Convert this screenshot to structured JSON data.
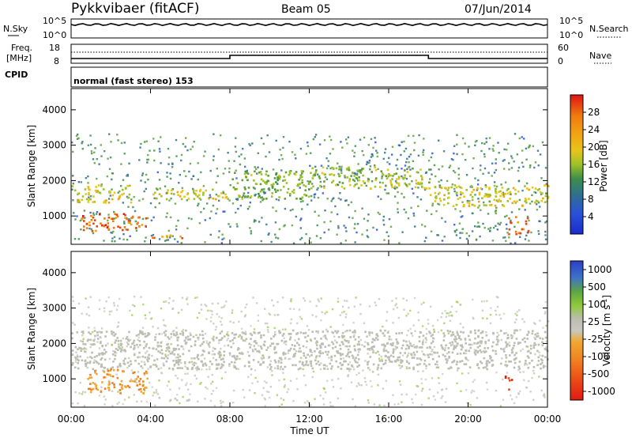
{
  "header": {
    "station": "Pykkvibaer (fitACF)",
    "beam": "Beam 05",
    "date": "07/Jun/2014"
  },
  "nsky_panel": {
    "left_label": "N.Sky",
    "left_ticks": [
      "10^5",
      "10^0"
    ],
    "right_ticks": [
      "10^5",
      "10^0"
    ],
    "right_label": "N.Search"
  },
  "freq_panel": {
    "left_label_top": "Freq.",
    "left_label_bottom": "[MHz]",
    "left_ticks": [
      "18",
      "8"
    ],
    "right_ticks": [
      "60",
      "0"
    ],
    "right_label": "Nave"
  },
  "cpid": {
    "label": "CPID",
    "mode_text": "normal (fast stereo) 153"
  },
  "x_axis": {
    "label": "Time UT",
    "ticks": [
      "00:00",
      "04:00",
      "08:00",
      "12:00",
      "16:00",
      "20:00",
      "00:00"
    ]
  },
  "colors": {
    "power_scale": [
      "#1a2ccc",
      "#2a52d8",
      "#2f6f8f",
      "#3d8f4a",
      "#5fa03a",
      "#9ec227",
      "#e7c51a",
      "#f2a313",
      "#f07b0e",
      "#e84410",
      "#dd1414"
    ],
    "velocity_scale": [
      "#2a3fc8",
      "#3f72c7",
      "#2e7a57",
      "#5ba644",
      "#8fca3a",
      "#bdbdb3",
      "#c8c8c0",
      "#f0a830",
      "#f07f20",
      "#ea4a16",
      "#e01a14"
    ]
  },
  "chart_data": [
    {
      "type": "heatmap",
      "name": "power",
      "ylabel": "Slant Range [km]",
      "yticks": [
        1000,
        2000,
        3000,
        4000
      ],
      "ylim": [
        200,
        4600
      ],
      "xlim_hours": [
        0,
        24
      ],
      "colorbar_label": "Power [dB]",
      "colorbar_ticks": [
        "4",
        "8",
        "12",
        "16",
        "20",
        "24",
        "28"
      ],
      "colorbar_range": [
        0,
        32
      ],
      "features_km_by_hour": [
        {
          "t": [
            0,
            3
          ],
          "range": [
            1400,
            1900
          ],
          "value": 18
        },
        {
          "t": [
            0.5,
            3.8
          ],
          "range": [
            600,
            1100
          ],
          "value": 27
        },
        {
          "t": [
            4,
            8
          ],
          "range": [
            1500,
            1800
          ],
          "value": 18
        },
        {
          "t": [
            4,
            6
          ],
          "range": [
            400,
            500
          ],
          "value": 25
        },
        {
          "t": [
            8,
            12
          ],
          "range": [
            1500,
            2300
          ],
          "value": 14
        },
        {
          "t": [
            12,
            18
          ],
          "range": [
            1800,
            2400
          ],
          "value": 16
        },
        {
          "t": [
            18,
            24
          ],
          "range": [
            1300,
            1900
          ],
          "value": 18
        },
        {
          "t": [
            22,
            23
          ],
          "range": [
            500,
            1000
          ],
          "value": 26
        }
      ]
    },
    {
      "type": "heatmap",
      "name": "velocity",
      "ylabel": "Slant Range [km]",
      "yticks": [
        1000,
        2000,
        3000,
        4000
      ],
      "ylim": [
        200,
        4600
      ],
      "xlim_hours": [
        0,
        24
      ],
      "colorbar_label": "Velocity [m s^-1]",
      "colorbar_ticks": [
        "1000",
        "500",
        "100",
        "25",
        "-25",
        "-100",
        "-500",
        "-1000"
      ],
      "features_km_by_hour": [
        {
          "t": [
            0,
            24
          ],
          "range": [
            1300,
            2400
          ],
          "value": 0
        },
        {
          "t": [
            0.8,
            3.8
          ],
          "range": [
            600,
            1300
          ],
          "value": -500
        },
        {
          "t": [
            4,
            6
          ],
          "range": [
            400,
            500
          ],
          "value": -200
        },
        {
          "t": [
            21.8,
            22.2
          ],
          "range": [
            700,
            1100
          ],
          "value": -900
        }
      ]
    }
  ]
}
